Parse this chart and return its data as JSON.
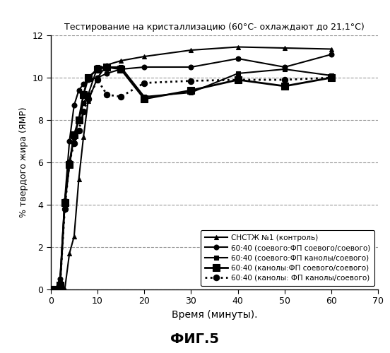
{
  "title": "Тестирование на кристаллизацию (60°С- охлаждают до 21,1°С)",
  "xlabel": "Время (минуты).",
  "ylabel": "% твердого жира (ЯМР)",
  "figtext": "ФИГ.5",
  "xlim": [
    0,
    70
  ],
  "ylim": [
    0,
    12
  ],
  "xticks": [
    0,
    10,
    20,
    30,
    40,
    50,
    60,
    70
  ],
  "yticks": [
    0,
    2,
    4,
    6,
    8,
    10,
    12
  ],
  "series": [
    {
      "label": "СНСТЖ №1 (контроль)",
      "x": [
        0,
        1,
        2,
        3,
        4,
        5,
        6,
        7,
        8,
        10,
        12,
        15,
        20,
        30,
        40,
        50,
        60
      ],
      "y": [
        0,
        0,
        0,
        0,
        1.7,
        2.5,
        5.2,
        7.2,
        8.9,
        10.0,
        10.6,
        10.8,
        11.0,
        11.3,
        11.45,
        11.4,
        11.35
      ],
      "linestyle": "-",
      "marker": "^",
      "markersize": 5,
      "linewidth": 1.5,
      "markerfacecolor": "black"
    },
    {
      "label": "60:40 (соевого:ФП соевого/соевого)",
      "x": [
        0,
        1,
        2,
        3,
        4,
        5,
        6,
        7,
        8,
        10,
        12,
        15,
        20,
        30,
        40,
        50,
        60
      ],
      "y": [
        0,
        0,
        0.5,
        4.2,
        7.0,
        8.7,
        9.4,
        9.7,
        9.9,
        10.0,
        10.2,
        10.4,
        10.5,
        10.5,
        10.9,
        10.5,
        11.1
      ],
      "linestyle": "-",
      "marker": "o",
      "markersize": 5,
      "linewidth": 1.5,
      "markerfacecolor": "black"
    },
    {
      "label": "60:40 (соевого:ФП канолы/соевого)",
      "x": [
        0,
        1,
        2,
        3,
        4,
        5,
        6,
        7,
        8,
        10,
        12,
        15,
        20,
        30,
        40,
        50,
        60
      ],
      "y": [
        0,
        0,
        0.3,
        4.1,
        6.0,
        7.2,
        8.0,
        8.8,
        9.2,
        10.5,
        10.5,
        10.5,
        9.1,
        9.3,
        10.2,
        10.4,
        10.1
      ],
      "linestyle": "-",
      "marker": "s",
      "markersize": 5,
      "linewidth": 1.5,
      "markerfacecolor": "black"
    },
    {
      "label": "60:40 (канолы:ФП соевого/соевого)",
      "x": [
        0,
        1,
        2,
        3,
        4,
        5,
        6,
        7,
        8,
        10,
        12,
        15,
        20,
        30,
        40,
        50,
        60
      ],
      "y": [
        0,
        0,
        0.2,
        4.1,
        5.9,
        7.3,
        8.0,
        9.2,
        10.0,
        10.4,
        10.5,
        10.4,
        9.0,
        9.4,
        9.9,
        9.6,
        10.0
      ],
      "linestyle": "-",
      "marker": "s",
      "markersize": 7,
      "linewidth": 2.0,
      "markerfacecolor": "black"
    },
    {
      "label": "60:40 (канолы: ФП канолы/соевого)",
      "x": [
        0,
        1,
        2,
        3,
        4,
        5,
        6,
        7,
        8,
        10,
        12,
        15,
        20,
        30,
        40,
        50,
        60
      ],
      "y": [
        0,
        0,
        0.2,
        3.8,
        6.0,
        6.9,
        7.5,
        8.4,
        9.0,
        9.9,
        9.2,
        9.1,
        9.75,
        9.85,
        9.9,
        9.9,
        10.0
      ],
      "linestyle": ":",
      "marker": "o",
      "markersize": 6,
      "linewidth": 2.0,
      "markerfacecolor": "black"
    }
  ],
  "background_color": "#ffffff",
  "grid_color": "#999999"
}
